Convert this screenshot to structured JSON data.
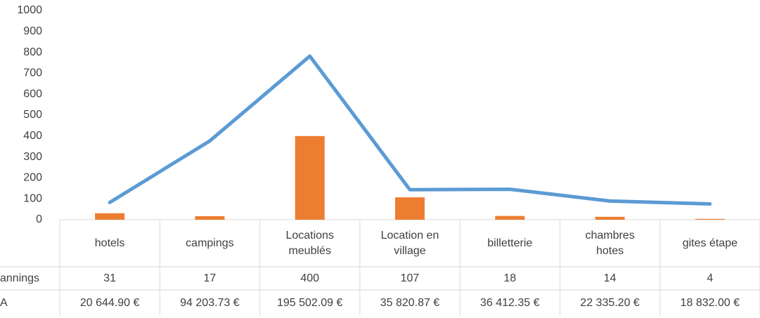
{
  "chart_data": {
    "type": "bar_line",
    "categories": [
      "hotels",
      "campings",
      "Locations meublés",
      "Location en village",
      "billetterie",
      "chambres hotes",
      "gites étape"
    ],
    "series": [
      {
        "name": "annings",
        "color": "#ed7d31",
        "type": "bar",
        "values": [
          31,
          17,
          400,
          107,
          18,
          14,
          4
        ]
      },
      {
        "name": "A",
        "color": "#5b9bd5",
        "type": "line",
        "axis": "y2",
        "values": [
          20644.9,
          94203.73,
          195502.09,
          35820.87,
          36412.35,
          22335.2,
          18832.0
        ],
        "value_labels": [
          "20 644.90 €",
          "94 203.73 €",
          "195 502.09 €",
          "35 820.87 €",
          "36 412.35 €",
          "22 335.20 €",
          "18 832.00 €"
        ]
      }
    ],
    "ylim": [
      0,
      1000
    ],
    "yticks": [
      0,
      100,
      200,
      300,
      400,
      500,
      600,
      700,
      800,
      900,
      1000
    ],
    "y2lim": [
      0,
      250000
    ],
    "data_table": true
  }
}
